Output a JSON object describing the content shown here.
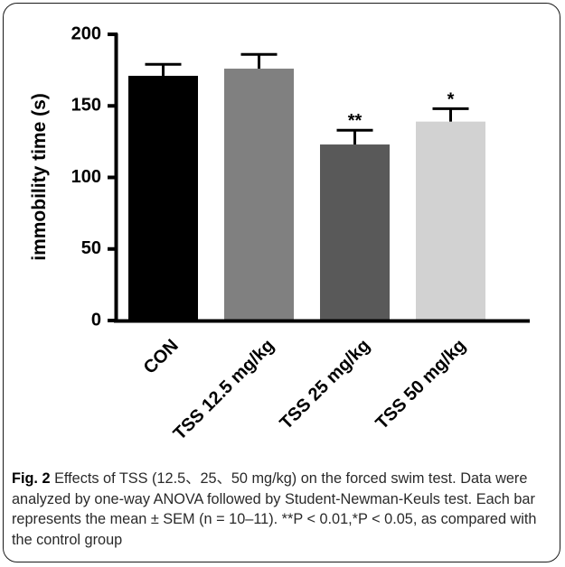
{
  "chart_data": {
    "type": "bar",
    "categories": [
      "CON",
      "TSS 12.5 mg/kg",
      "TSS 25 mg/kg",
      "TSS 50 mg/kg"
    ],
    "values": [
      171,
      176,
      123,
      139
    ],
    "errors": [
      8,
      10,
      10,
      9
    ],
    "significance": [
      "",
      "",
      "**",
      "*"
    ],
    "bar_colors": [
      "#000000",
      "#808080",
      "#595959",
      "#d2d2d2"
    ],
    "title": "",
    "xlabel": "",
    "ylabel": "immobility time (s)",
    "ylim": [
      0,
      200
    ],
    "yticks": [
      0,
      50,
      100,
      150,
      200
    ],
    "ytick_labels": [
      "0",
      "50",
      "100",
      "150",
      "200"
    ],
    "grid": false,
    "legend": "none"
  },
  "caption": {
    "label": "Fig. 2",
    "text": "Effects of TSS (12.5、25、50 mg/kg) on the forced swim test. Data were analyzed by one-way ANOVA followed by Student-Newman-Keuls test. Each bar represents the mean ± SEM (n = 10–11). **P < 0.01,*P < 0.05, as compared with the control group"
  }
}
